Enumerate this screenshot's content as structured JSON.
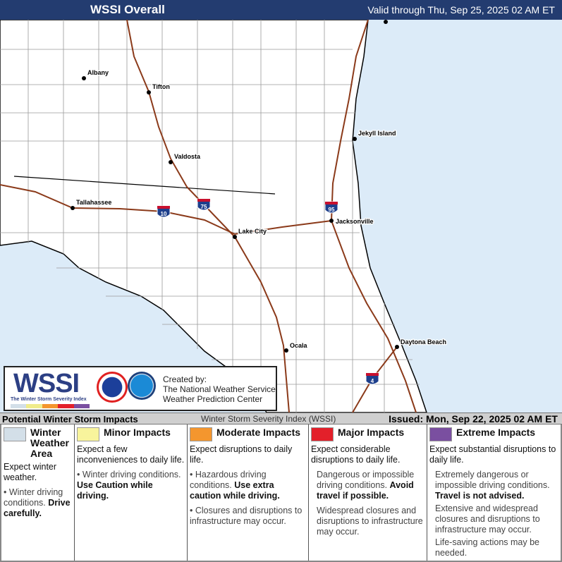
{
  "header": {
    "title": "WSSI Overall",
    "valid": "Valid through Thu, Sep 25, 2025 02 AM ET"
  },
  "map": {
    "cities": [
      {
        "name": "Albany"
      },
      {
        "name": "Tifton"
      },
      {
        "name": "Valdosta"
      },
      {
        "name": "Tallahassee"
      },
      {
        "name": "Lake City"
      },
      {
        "name": "Jacksonville"
      },
      {
        "name": "Jekyll Island"
      },
      {
        "name": "Ocala"
      },
      {
        "name": "Daytona Beach"
      }
    ],
    "interstates": [
      "75",
      "10",
      "95",
      "4"
    ],
    "colors": {
      "land": "#ffffff",
      "water": "#dcebf8",
      "roads": "#8b3a1a",
      "county_lines": "#9a9a9a"
    }
  },
  "logo": {
    "wssi": "WSSI",
    "subtitle": "The Winter Storm Severity Index",
    "credits": [
      "Created by:",
      "The National Weather Service",
      "Weather Prediction Center"
    ]
  },
  "bar": {
    "left": "Potential Winter Storm Impacts",
    "center": "Winter Storm Severity Index (WSSI)",
    "right": "Issued: Mon, Sep 22, 2025 02 AM ET"
  },
  "legend": [
    {
      "label": "Winter Weather Area",
      "color": "#d3dfe8",
      "expect": "Expect winter weather.",
      "details": [
        "• Winter driving conditions.",
        "Drive carefully."
      ]
    },
    {
      "label": "Minor Impacts",
      "color": "#f8f49c",
      "expect": "Expect a few inconveniences to daily life.",
      "details": [
        "• Winter driving conditions.",
        "Use Caution while driving."
      ]
    },
    {
      "label": "Moderate Impacts",
      "color": "#f4962e",
      "expect": "Expect disruptions to daily life.",
      "details": [
        "• Hazardous driving conditions.",
        "Use extra caution while driving.",
        "• Closures and disruptions to infrastructure may occur."
      ]
    },
    {
      "label": "Major Impacts",
      "color": "#e3202a",
      "expect": "Expect considerable disruptions to daily life.",
      "details": [
        "Dangerous or impossible driving conditions.",
        "Avoid travel if possible.",
        "Widespread closures and disruptions to infrastructure may occur."
      ]
    },
    {
      "label": "Extreme Impacts",
      "color": "#7a4fa0",
      "expect": "Expect substantial disruptions to daily life.",
      "details": [
        "Extremely dangerous or impossible driving conditions.",
        "Travel is not advised.",
        "Extensive and widespread closures and disruptions to infrastructure may occur.",
        "Life-saving actions may be needed."
      ]
    }
  ]
}
